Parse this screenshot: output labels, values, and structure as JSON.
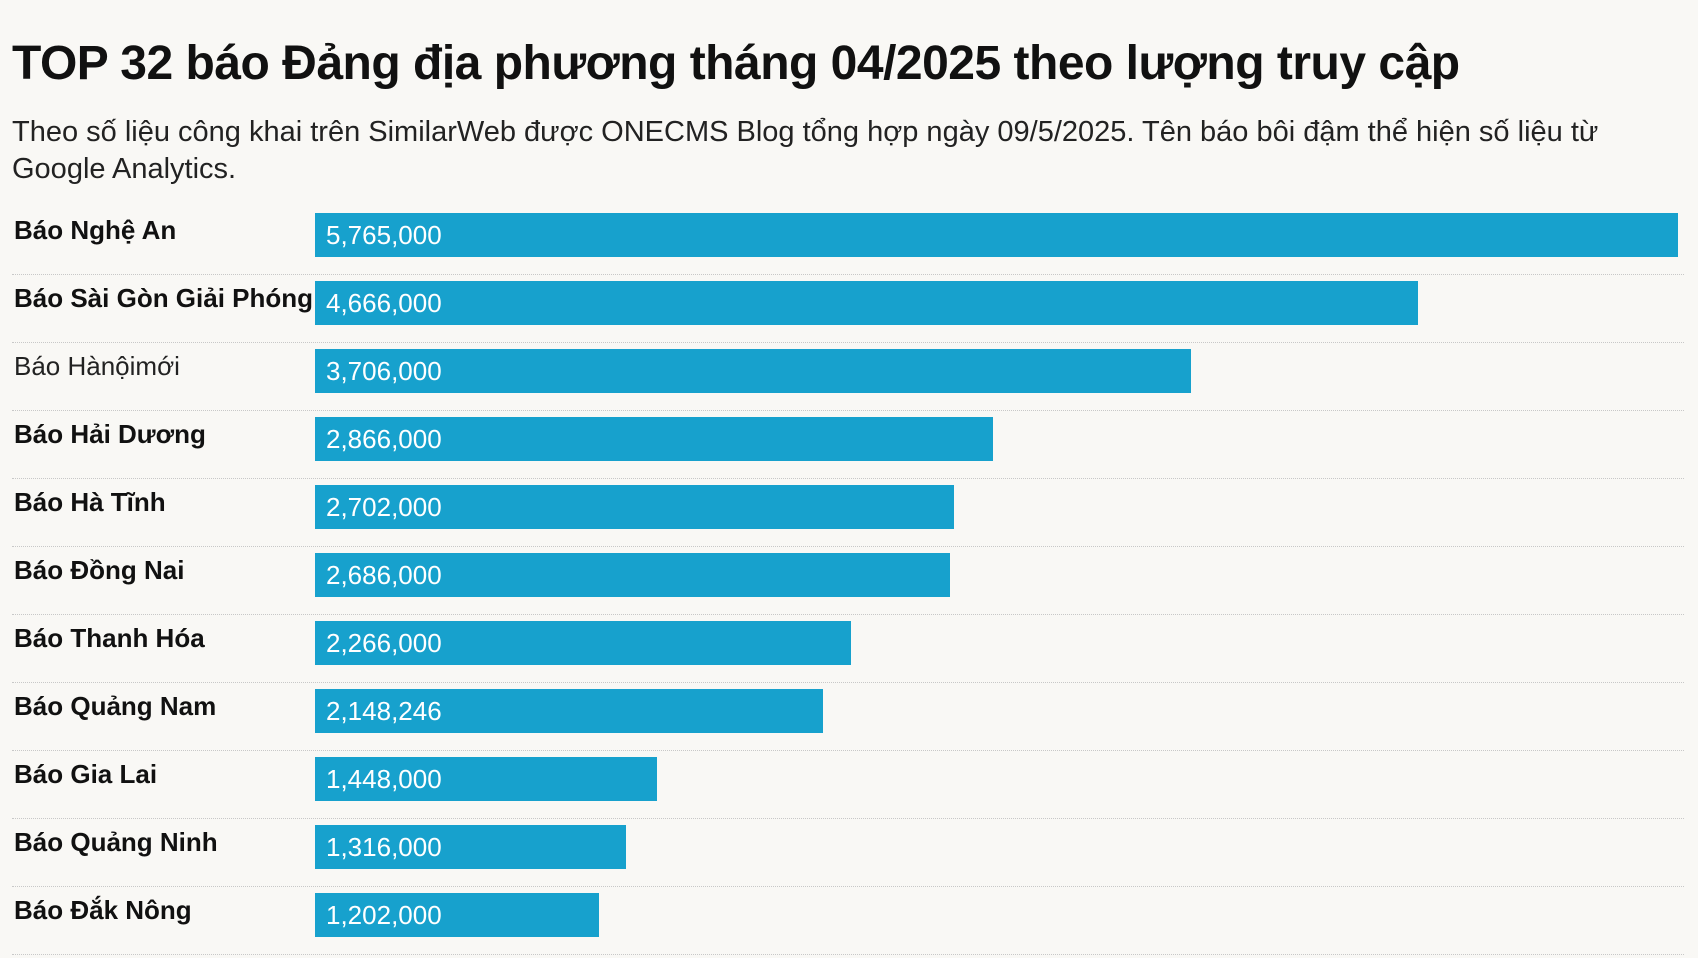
{
  "title": "TOP 32 báo Đảng địa phương tháng 04/2025 theo lượng truy cập",
  "subtitle": "Theo số liệu công khai trên SimilarWeb được ONECMS Blog tổng hợp ngày 09/5/2025. Tên báo bôi đậm thể hiện số liệu từ Google Analytics.",
  "colors": {
    "bar": "#17a1cd",
    "background": "#f9f8f5",
    "bar_text": "#ffffff"
  },
  "chart_data": {
    "type": "bar",
    "orientation": "horizontal",
    "categories": [
      "Báo Nghệ An",
      "Báo Sài Gòn Giải Phóng",
      "Báo Hànộimới",
      "Báo Hải Dương",
      "Báo Hà Tĩnh",
      "Báo Đồng Nai",
      "Báo Thanh Hóa",
      "Báo Quảng Nam",
      "Báo Gia Lai",
      "Báo Quảng Ninh",
      "Báo Đắk Nông"
    ],
    "values": [
      5765000,
      4666000,
      3706000,
      2866000,
      2702000,
      2686000,
      2266000,
      2148246,
      1448000,
      1316000,
      1202000
    ],
    "value_labels": [
      "5,765,000",
      "4,666,000",
      "3,706,000",
      "2,866,000",
      "2,702,000",
      "2,686,000",
      "2,266,000",
      "2,148,246",
      "1,448,000",
      "1,316,000",
      "1,202,000"
    ],
    "bold": [
      true,
      true,
      false,
      true,
      true,
      true,
      true,
      true,
      true,
      true,
      true
    ],
    "xlim": [
      0,
      5765000
    ],
    "grid": false,
    "legend": "none"
  }
}
